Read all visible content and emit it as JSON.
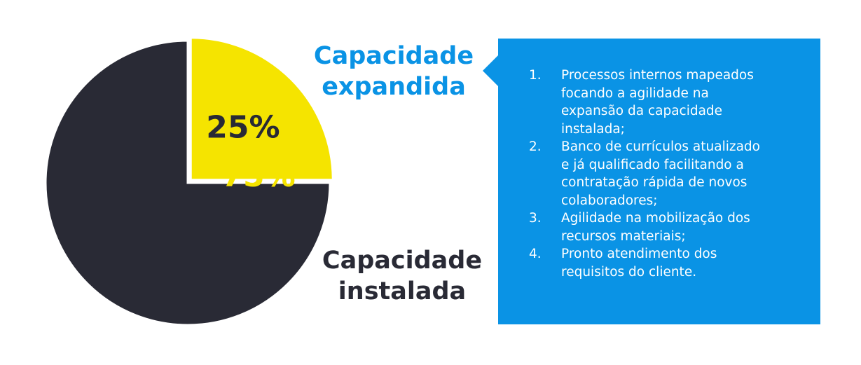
{
  "colors": {
    "yellow": "#f5e400",
    "dark": "#292a35",
    "blue": "#0a93e5",
    "white": "#ffffff"
  },
  "chart_data": {
    "type": "pie",
    "slices": [
      {
        "label": "Capacidade expandida",
        "value": 25,
        "display": "25%",
        "color": "#f5e400",
        "exploded": true
      },
      {
        "label": "Capacidade instalada",
        "value": 75,
        "display": "75%",
        "color": "#292a35",
        "exploded": false
      }
    ]
  },
  "labels": {
    "expandida_line1": "Capacidade",
    "expandida_line2": "expandida",
    "instalada_line1": "Capacidade",
    "instalada_line2": "instalada"
  },
  "info_box": {
    "items": [
      {
        "num": "1.",
        "lines": [
          "Processos internos mapeados",
          "focando a agilidade na",
          "expansão da capacidade",
          "instalada;"
        ]
      },
      {
        "num": "2.",
        "lines": [
          "Banco de currículos atualizado",
          "e já qualificado facilitando a",
          "contratação rápida de novos",
          "colaboradores;"
        ]
      },
      {
        "num": "3.",
        "lines": [
          "Agilidade na mobilização dos",
          "recursos materiais;"
        ]
      },
      {
        "num": "4.",
        "lines": [
          "Pronto atendimento dos",
          "requisitos do cliente."
        ]
      }
    ]
  }
}
